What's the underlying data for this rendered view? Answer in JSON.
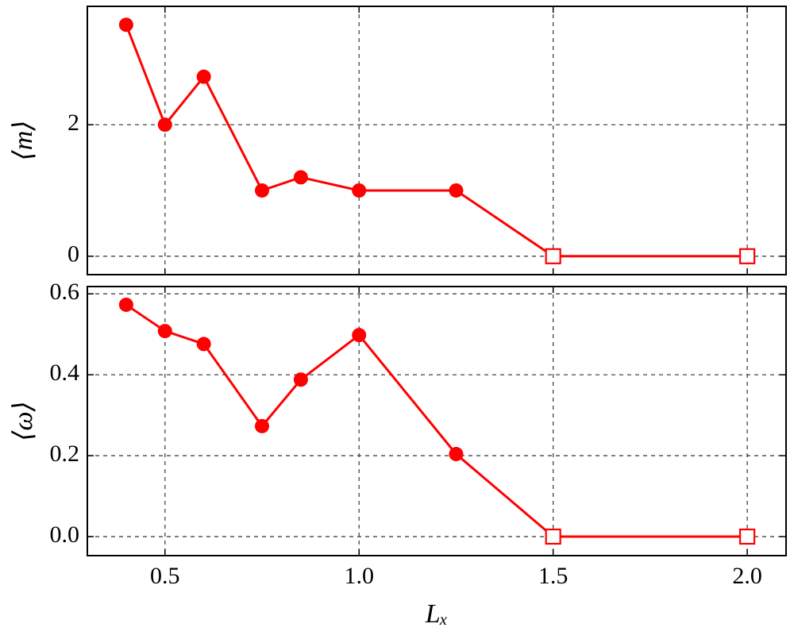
{
  "chart_data": [
    {
      "type": "line",
      "ylabel": "⟨m⟩",
      "x": [
        0.4,
        0.5,
        0.6,
        0.75,
        0.85,
        1.0,
        1.25,
        1.5,
        2.0
      ],
      "values": [
        3.52,
        2,
        2.73,
        1,
        1.2,
        1,
        1,
        0,
        0
      ],
      "markers": [
        "o",
        "o",
        "o",
        "o",
        "o",
        "o",
        "o",
        "s",
        "s"
      ],
      "color": "#ff0000",
      "xlim": [
        0.3,
        2.1
      ],
      "xticks": [
        0.5,
        1,
        1.5,
        2
      ],
      "ylim": [
        -0.28,
        3.8
      ],
      "yticks": [
        0,
        2
      ],
      "grid": true
    },
    {
      "type": "line",
      "ylabel": "⟨ω⟩",
      "xlabel": "Lₓ",
      "x": [
        0.4,
        0.5,
        0.6,
        0.75,
        0.85,
        1.0,
        1.25,
        1.5,
        2.0
      ],
      "values": [
        0.573,
        0.508,
        0.476,
        0.273,
        0.388,
        0.498,
        0.204,
        0,
        0
      ],
      "markers": [
        "o",
        "o",
        "o",
        "o",
        "o",
        "o",
        "o",
        "s",
        "s"
      ],
      "color": "#ff0000",
      "xlim": [
        0.3,
        2.1
      ],
      "xticks": [
        0.5,
        {
          "value": 1,
          "label": "1.0"
        },
        1.5,
        {
          "value": 2,
          "label": "2.0"
        }
      ],
      "ylim": [
        -0.047,
        0.618
      ],
      "yticks": [
        {
          "value": 0,
          "label": "0.0"
        },
        0.2,
        0.4,
        0.6
      ],
      "grid": true
    }
  ]
}
